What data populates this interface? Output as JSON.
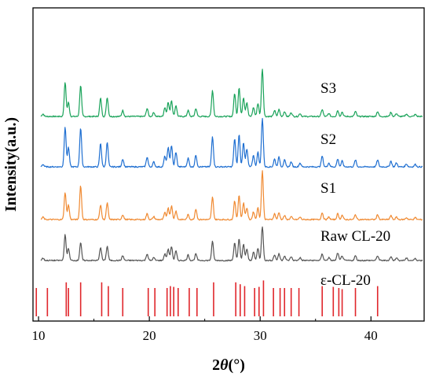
{
  "chart_data": {
    "type": "line",
    "xlabel": {
      "pre": "2",
      "theta": "θ",
      "post": "(°)"
    },
    "ylabel": "Intensity(a.u.)",
    "xlim": [
      9.5,
      44.8
    ],
    "xticks": [
      10,
      20,
      30,
      40
    ],
    "y_ticks_labeled": false,
    "grid": false,
    "legend": "labels beside each trace",
    "peak_width_deg": 0.12,
    "series": [
      {
        "name": "S3",
        "color": "#1aa35a",
        "stack_index": 4,
        "peaks": [
          [
            10.4,
            0.05
          ],
          [
            12.4,
            0.68
          ],
          [
            12.7,
            0.28
          ],
          [
            13.8,
            0.62
          ],
          [
            15.6,
            0.36
          ],
          [
            16.2,
            0.38
          ],
          [
            17.6,
            0.12
          ],
          [
            19.8,
            0.16
          ],
          [
            20.4,
            0.08
          ],
          [
            21.4,
            0.18
          ],
          [
            21.7,
            0.28
          ],
          [
            22.0,
            0.32
          ],
          [
            22.4,
            0.22
          ],
          [
            23.5,
            0.12
          ],
          [
            24.2,
            0.16
          ],
          [
            25.7,
            0.52
          ],
          [
            27.7,
            0.46
          ],
          [
            28.1,
            0.58
          ],
          [
            28.5,
            0.38
          ],
          [
            28.8,
            0.28
          ],
          [
            29.4,
            0.18
          ],
          [
            29.8,
            0.26
          ],
          [
            30.2,
            0.95
          ],
          [
            31.3,
            0.12
          ],
          [
            31.7,
            0.14
          ],
          [
            32.2,
            0.1
          ],
          [
            32.8,
            0.08
          ],
          [
            33.6,
            0.06
          ],
          [
            35.6,
            0.14
          ],
          [
            36.2,
            0.06
          ],
          [
            37.0,
            0.12
          ],
          [
            37.4,
            0.09
          ],
          [
            38.6,
            0.1
          ],
          [
            40.6,
            0.1
          ],
          [
            41.8,
            0.08
          ],
          [
            42.3,
            0.06
          ],
          [
            43.2,
            0.05
          ],
          [
            44.0,
            0.04
          ]
        ]
      },
      {
        "name": "S2",
        "color": "#1f6fd1",
        "stack_index": 3,
        "peaks": [
          [
            10.4,
            0.05
          ],
          [
            12.4,
            0.82
          ],
          [
            12.7,
            0.4
          ],
          [
            13.8,
            0.8
          ],
          [
            15.6,
            0.48
          ],
          [
            16.2,
            0.5
          ],
          [
            17.6,
            0.16
          ],
          [
            19.8,
            0.2
          ],
          [
            20.4,
            0.1
          ],
          [
            21.4,
            0.22
          ],
          [
            21.7,
            0.4
          ],
          [
            22.0,
            0.44
          ],
          [
            22.4,
            0.3
          ],
          [
            23.5,
            0.18
          ],
          [
            24.2,
            0.24
          ],
          [
            25.7,
            0.62
          ],
          [
            27.7,
            0.58
          ],
          [
            28.1,
            0.66
          ],
          [
            28.5,
            0.5
          ],
          [
            28.8,
            0.36
          ],
          [
            29.4,
            0.24
          ],
          [
            29.8,
            0.3
          ],
          [
            30.2,
            1.0
          ],
          [
            31.3,
            0.16
          ],
          [
            31.7,
            0.2
          ],
          [
            32.2,
            0.14
          ],
          [
            32.8,
            0.1
          ],
          [
            33.6,
            0.08
          ],
          [
            35.6,
            0.22
          ],
          [
            36.2,
            0.08
          ],
          [
            37.0,
            0.16
          ],
          [
            37.4,
            0.12
          ],
          [
            38.6,
            0.14
          ],
          [
            40.6,
            0.14
          ],
          [
            41.8,
            0.12
          ],
          [
            42.3,
            0.08
          ],
          [
            43.2,
            0.06
          ],
          [
            44.0,
            0.05
          ]
        ]
      },
      {
        "name": "S1",
        "color": "#f08a32",
        "stack_index": 2,
        "peaks": [
          [
            10.4,
            0.05
          ],
          [
            12.4,
            0.56
          ],
          [
            12.7,
            0.3
          ],
          [
            13.8,
            0.7
          ],
          [
            15.6,
            0.3
          ],
          [
            16.2,
            0.34
          ],
          [
            17.6,
            0.1
          ],
          [
            19.8,
            0.12
          ],
          [
            20.4,
            0.06
          ],
          [
            21.4,
            0.14
          ],
          [
            21.7,
            0.24
          ],
          [
            22.0,
            0.28
          ],
          [
            22.4,
            0.18
          ],
          [
            23.5,
            0.1
          ],
          [
            24.2,
            0.22
          ],
          [
            25.7,
            0.46
          ],
          [
            27.7,
            0.38
          ],
          [
            28.1,
            0.5
          ],
          [
            28.5,
            0.34
          ],
          [
            28.8,
            0.24
          ],
          [
            29.4,
            0.16
          ],
          [
            29.8,
            0.24
          ],
          [
            30.2,
            1.0
          ],
          [
            31.3,
            0.12
          ],
          [
            31.7,
            0.14
          ],
          [
            32.2,
            0.08
          ],
          [
            32.8,
            0.06
          ],
          [
            33.6,
            0.05
          ],
          [
            35.6,
            0.14
          ],
          [
            36.2,
            0.05
          ],
          [
            37.0,
            0.12
          ],
          [
            37.4,
            0.09
          ],
          [
            38.6,
            0.1
          ],
          [
            40.6,
            0.1
          ],
          [
            41.8,
            0.08
          ],
          [
            42.3,
            0.05
          ],
          [
            43.2,
            0.04
          ],
          [
            44.0,
            0.04
          ]
        ]
      },
      {
        "name": "Raw CL-20",
        "color": "#555555",
        "stack_index": 1,
        "peaks": [
          [
            10.4,
            0.05
          ],
          [
            12.4,
            0.54
          ],
          [
            12.7,
            0.26
          ],
          [
            13.8,
            0.38
          ],
          [
            15.6,
            0.28
          ],
          [
            16.2,
            0.3
          ],
          [
            17.6,
            0.1
          ],
          [
            19.8,
            0.14
          ],
          [
            20.4,
            0.06
          ],
          [
            21.4,
            0.14
          ],
          [
            21.7,
            0.24
          ],
          [
            22.0,
            0.3
          ],
          [
            22.4,
            0.2
          ],
          [
            23.5,
            0.12
          ],
          [
            24.2,
            0.14
          ],
          [
            25.7,
            0.4
          ],
          [
            27.7,
            0.38
          ],
          [
            28.1,
            0.46
          ],
          [
            28.5,
            0.34
          ],
          [
            28.8,
            0.24
          ],
          [
            29.4,
            0.18
          ],
          [
            29.8,
            0.26
          ],
          [
            30.2,
            0.72
          ],
          [
            31.3,
            0.12
          ],
          [
            31.7,
            0.14
          ],
          [
            32.2,
            0.1
          ],
          [
            32.8,
            0.08
          ],
          [
            33.6,
            0.06
          ],
          [
            35.6,
            0.14
          ],
          [
            36.2,
            0.06
          ],
          [
            37.0,
            0.16
          ],
          [
            37.4,
            0.1
          ],
          [
            38.6,
            0.1
          ],
          [
            40.6,
            0.1
          ],
          [
            41.8,
            0.08
          ],
          [
            42.3,
            0.06
          ],
          [
            43.2,
            0.05
          ],
          [
            44.0,
            0.04
          ]
        ]
      }
    ],
    "reference": {
      "name": "ε-CL-20",
      "color": "#e0262b",
      "stack_index": 0,
      "sticks": [
        [
          9.8,
          0.75
        ],
        [
          10.8,
          0.75
        ],
        [
          12.5,
          0.9
        ],
        [
          12.7,
          0.75
        ],
        [
          13.8,
          0.9
        ],
        [
          15.7,
          0.9
        ],
        [
          16.3,
          0.8
        ],
        [
          17.6,
          0.75
        ],
        [
          19.9,
          0.75
        ],
        [
          20.5,
          0.75
        ],
        [
          21.6,
          0.75
        ],
        [
          21.9,
          0.8
        ],
        [
          22.2,
          0.78
        ],
        [
          22.6,
          0.75
        ],
        [
          23.6,
          0.75
        ],
        [
          24.3,
          0.75
        ],
        [
          25.8,
          0.9
        ],
        [
          27.8,
          0.9
        ],
        [
          28.2,
          0.85
        ],
        [
          28.6,
          0.8
        ],
        [
          29.5,
          0.75
        ],
        [
          29.9,
          0.78
        ],
        [
          30.3,
          0.95
        ],
        [
          31.2,
          0.75
        ],
        [
          31.8,
          0.75
        ],
        [
          32.2,
          0.75
        ],
        [
          32.8,
          0.75
        ],
        [
          33.5,
          0.75
        ],
        [
          35.6,
          0.8
        ],
        [
          36.6,
          0.78
        ],
        [
          37.1,
          0.75
        ],
        [
          37.4,
          0.72
        ],
        [
          38.6,
          0.75
        ],
        [
          40.6,
          0.8
        ]
      ]
    }
  }
}
